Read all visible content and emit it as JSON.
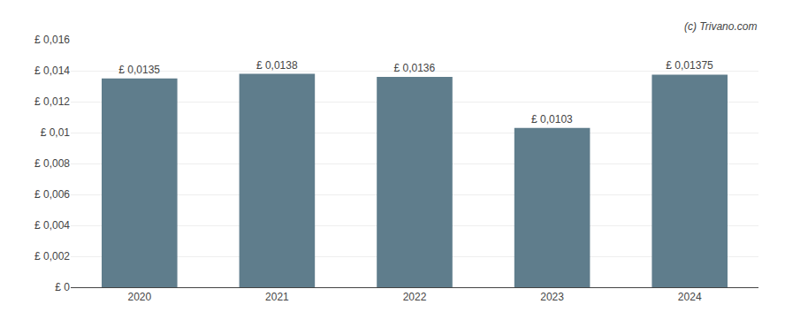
{
  "chart_data": {
    "type": "bar",
    "categories": [
      "2020",
      "2021",
      "2022",
      "2023",
      "2024"
    ],
    "values": [
      0.0135,
      0.0138,
      0.0136,
      0.0103,
      0.01375
    ],
    "value_labels": [
      "£ 0,0135",
      "£ 0,0138",
      "£ 0,0136",
      "£ 0,0103",
      "£ 0,01375"
    ],
    "data_labels": true,
    "color": "#5f7d8c",
    "ylim": [
      0,
      0.016
    ],
    "yticks": [
      {
        "value": 0,
        "label": "£ 0"
      },
      {
        "value": 0.002,
        "label": "£ 0,002"
      },
      {
        "value": 0.004,
        "label": "£ 0,004"
      },
      {
        "value": 0.006,
        "label": "£ 0,006"
      },
      {
        "value": 0.008,
        "label": "£ 0,008"
      },
      {
        "value": 0.01,
        "label": "£ 0,01"
      },
      {
        "value": 0.012,
        "label": "£ 0,012"
      },
      {
        "value": 0.014,
        "label": "£ 0,014"
      },
      {
        "value": 0.016,
        "label": "£ 0,016"
      }
    ],
    "grid": true,
    "annotations": [
      "(c) Trivano.com"
    ]
  }
}
